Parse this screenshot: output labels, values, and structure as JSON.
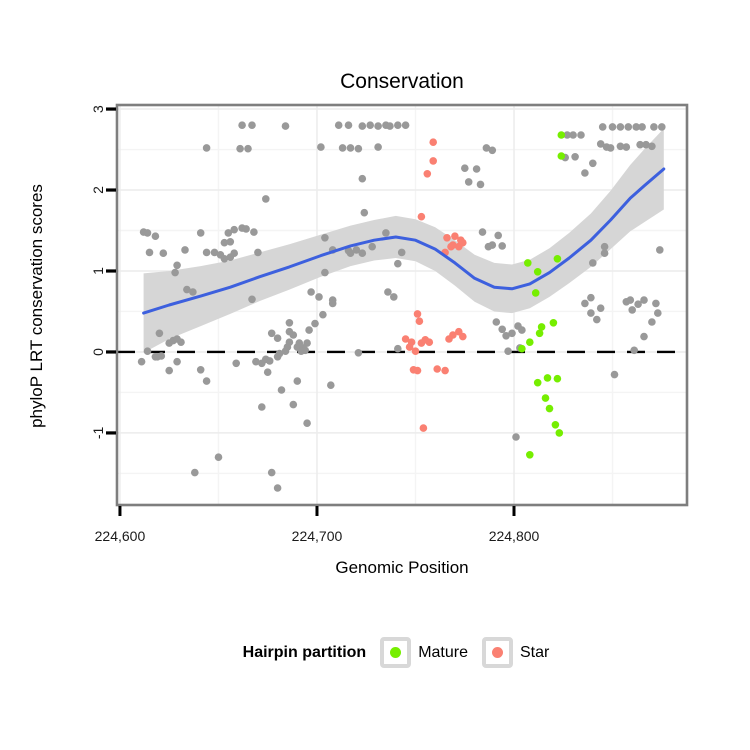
{
  "title": "Conservation",
  "axes": {
    "x": {
      "label": "Genomic Position",
      "domain": [
        224598.5,
        224887.8
      ],
      "ticks": [
        {
          "value": 224600,
          "label": "224,600"
        },
        {
          "value": 224700,
          "label": "224,700"
        },
        {
          "value": 224800,
          "label": "224,800"
        }
      ],
      "minor": [
        224650,
        224750,
        224850
      ]
    },
    "y": {
      "label": "phyloP LRT conservation scores",
      "domain": [
        -1.89,
        3.05
      ],
      "ticks": [
        {
          "value": 3,
          "label": "3"
        },
        {
          "value": 2,
          "label": "2"
        },
        {
          "value": 1,
          "label": "1"
        },
        {
          "value": 0,
          "label": "0"
        },
        {
          "value": -1,
          "label": "-1"
        }
      ],
      "minor": [
        2.5,
        1.5,
        0.5,
        -0.5,
        -1.5
      ]
    }
  },
  "reference_line": {
    "y": 0,
    "style": "dashed",
    "color": "#000000"
  },
  "legend": {
    "title": "Hairpin partition",
    "items": [
      {
        "label": "Mature",
        "color": "#76EE00"
      },
      {
        "label": "Star",
        "color": "#FA8072"
      }
    ]
  },
  "colors": {
    "other_points": "#999999",
    "mature_points": "#76EE00",
    "star_points": "#FA8072",
    "smooth_line": "#3D60DE",
    "confidence_band": "#D6D6D6",
    "panel_border": "#7E7E7E",
    "grid_major": "#ECECEC",
    "grid_minor": "#F4F4F4",
    "tick_text": "#1A1A1A"
  },
  "chart_data": {
    "type": "scatter",
    "xlabel": "Genomic Position",
    "ylabel": "phyloP LRT conservation scores",
    "title": "Conservation",
    "series": [
      {
        "name": "Other",
        "color": "#999999",
        "points": [
          [
            224662,
            2.8
          ],
          [
            224667,
            2.8
          ],
          [
            224684,
            2.79
          ],
          [
            224711,
            2.8
          ],
          [
            224716,
            2.8
          ],
          [
            224723,
            2.79
          ],
          [
            224727,
            2.8
          ],
          [
            224731,
            2.79
          ],
          [
            224735,
            2.8
          ],
          [
            224737,
            2.79
          ],
          [
            224741,
            2.8
          ],
          [
            224745,
            2.8
          ],
          [
            224845,
            2.78
          ],
          [
            224850,
            2.78
          ],
          [
            224854,
            2.78
          ],
          [
            224858,
            2.78
          ],
          [
            224862,
            2.78
          ],
          [
            224865,
            2.78
          ],
          [
            224871,
            2.78
          ],
          [
            224875,
            2.78
          ],
          [
            224644,
            2.52
          ],
          [
            224661,
            2.51
          ],
          [
            224665,
            2.51
          ],
          [
            224702,
            2.53
          ],
          [
            224713,
            2.52
          ],
          [
            224717,
            2.52
          ],
          [
            224721,
            2.51
          ],
          [
            224731,
            2.53
          ],
          [
            224786,
            2.52
          ],
          [
            224789,
            2.49
          ],
          [
            224844,
            2.57
          ],
          [
            224847,
            2.53
          ],
          [
            224849,
            2.52
          ],
          [
            224854,
            2.54
          ],
          [
            224857,
            2.53
          ],
          [
            224864,
            2.56
          ],
          [
            224867,
            2.56
          ],
          [
            224870,
            2.54
          ],
          [
            224827,
            2.68
          ],
          [
            224830,
            2.68
          ],
          [
            224834,
            2.68
          ],
          [
            224826,
            2.4
          ],
          [
            224831,
            2.41
          ],
          [
            224674,
            1.89
          ],
          [
            224723,
            2.14
          ],
          [
            224724,
            1.72
          ],
          [
            224775,
            2.27
          ],
          [
            224781,
            2.26
          ],
          [
            224777,
            2.1
          ],
          [
            224783,
            2.07
          ],
          [
            224840,
            2.33
          ],
          [
            224836,
            2.21
          ],
          [
            224784,
            1.48
          ],
          [
            224787,
            1.3
          ],
          [
            224792,
            1.44
          ],
          [
            224789,
            1.32
          ],
          [
            224794,
            1.31
          ],
          [
            224612,
            1.48
          ],
          [
            224614,
            1.47
          ],
          [
            224618,
            1.43
          ],
          [
            224615,
            1.23
          ],
          [
            224622,
            1.22
          ],
          [
            224633,
            1.26
          ],
          [
            224641,
            1.47
          ],
          [
            224629,
            1.07
          ],
          [
            224628,
            0.98
          ],
          [
            224644,
            1.23
          ],
          [
            224648,
            1.23
          ],
          [
            224651,
            1.2
          ],
          [
            224653,
            1.35
          ],
          [
            224656,
            1.36
          ],
          [
            224655,
            1.47
          ],
          [
            224658,
            1.51
          ],
          [
            224662,
            1.53
          ],
          [
            224664,
            1.52
          ],
          [
            224668,
            1.48
          ],
          [
            224653,
            1.15
          ],
          [
            224656,
            1.17
          ],
          [
            224658,
            1.22
          ],
          [
            224670,
            1.23
          ],
          [
            224634,
            0.77
          ],
          [
            224637,
            0.74
          ],
          [
            224667,
            0.65
          ],
          [
            224704,
            1.41
          ],
          [
            224708,
            1.26
          ],
          [
            224717,
            1.22
          ],
          [
            224728,
            1.3
          ],
          [
            224735,
            1.47
          ],
          [
            224743,
            1.23
          ],
          [
            224741,
            1.09
          ],
          [
            224704,
            0.98
          ],
          [
            224697,
            0.74
          ],
          [
            224701,
            0.68
          ],
          [
            224708,
            0.64
          ],
          [
            224736,
            0.74
          ],
          [
            224739,
            0.68
          ],
          [
            224716,
            1.25
          ],
          [
            224720,
            1.26
          ],
          [
            224723,
            1.22
          ],
          [
            224611,
            -0.12
          ],
          [
            224614,
            0.01
          ],
          [
            224618,
            -0.06
          ],
          [
            224619,
            -0.06
          ],
          [
            224621,
            -0.05
          ],
          [
            224625,
            0.11
          ],
          [
            224627,
            0.14
          ],
          [
            224629,
            0.16
          ],
          [
            224631,
            0.12
          ],
          [
            224620,
            0.23
          ],
          [
            224629,
            -0.12
          ],
          [
            224625,
            -0.23
          ],
          [
            224641,
            -0.22
          ],
          [
            224644,
            -0.36
          ],
          [
            224659,
            -0.14
          ],
          [
            224669,
            -0.12
          ],
          [
            224672,
            -0.14
          ],
          [
            224674,
            -0.09
          ],
          [
            224676,
            -0.11
          ],
          [
            224680,
            -0.06
          ],
          [
            224681,
            -0.02
          ],
          [
            224684,
            0.01
          ],
          [
            224685,
            0.06
          ],
          [
            224675,
            -0.25
          ],
          [
            224677,
            0.23
          ],
          [
            224680,
            0.17
          ],
          [
            224686,
            0.12
          ],
          [
            224688,
            0.21
          ],
          [
            224690,
            0.06
          ],
          [
            224695,
            0.11
          ],
          [
            224692,
            0.01
          ],
          [
            224686,
            0.36
          ],
          [
            224686,
            0.25
          ],
          [
            224690,
            -0.36
          ],
          [
            224682,
            -0.47
          ],
          [
            224688,
            -0.65
          ],
          [
            224672,
            -0.68
          ],
          [
            224695,
            -0.88
          ],
          [
            224708,
            0.6
          ],
          [
            224703,
            0.46
          ],
          [
            224699,
            0.35
          ],
          [
            224696,
            0.27
          ],
          [
            224691,
            0.11
          ],
          [
            224693,
            0.05
          ],
          [
            224694,
            0.02
          ],
          [
            224707,
            -0.41
          ],
          [
            224721,
            -0.01
          ],
          [
            224741,
            0.04
          ],
          [
            224638,
            -1.49
          ],
          [
            224650,
            -1.3
          ],
          [
            224677,
            -1.49
          ],
          [
            224680,
            -1.68
          ],
          [
            224801,
            -1.05
          ],
          [
            224791,
            0.37
          ],
          [
            224794,
            0.28
          ],
          [
            224796,
            0.2
          ],
          [
            224799,
            0.23
          ],
          [
            224802,
            0.32
          ],
          [
            224804,
            0.27
          ],
          [
            224797,
            0.01
          ],
          [
            224803,
            0.05
          ],
          [
            224836,
            0.6
          ],
          [
            224839,
            0.48
          ],
          [
            224842,
            0.4
          ],
          [
            224844,
            0.54
          ],
          [
            224857,
            0.62
          ],
          [
            224860,
            0.52
          ],
          [
            224863,
            0.59
          ],
          [
            224872,
            0.6
          ],
          [
            224873,
            0.48
          ],
          [
            224870,
            0.37
          ],
          [
            224866,
            0.19
          ],
          [
            224861,
            0.02
          ],
          [
            224851,
            -0.28
          ],
          [
            224840,
            1.1
          ],
          [
            224846,
            1.3
          ],
          [
            224846,
            1.22
          ],
          [
            224874,
            1.26
          ],
          [
            224839,
            0.67
          ],
          [
            224859,
            0.64
          ],
          [
            224866,
            0.64
          ]
        ]
      },
      {
        "name": "Mature",
        "color": "#76EE00",
        "points": [
          [
            224824,
            2.68
          ],
          [
            224824,
            2.42
          ],
          [
            224822,
            1.15
          ],
          [
            224807,
            1.1
          ],
          [
            224812,
            0.99
          ],
          [
            224811,
            0.73
          ],
          [
            224820,
            0.36
          ],
          [
            224814,
            0.31
          ],
          [
            224813,
            0.23
          ],
          [
            224808,
            0.12
          ],
          [
            224804,
            0.04
          ],
          [
            224812,
            -0.38
          ],
          [
            224817,
            -0.32
          ],
          [
            224822,
            -0.33
          ],
          [
            224816,
            -0.57
          ],
          [
            224818,
            -0.7
          ],
          [
            224821,
            -0.9
          ],
          [
            224823,
            -1.0
          ],
          [
            224808,
            -1.27
          ]
        ]
      },
      {
        "name": "Star",
        "color": "#FA8072",
        "points": [
          [
            224759,
            2.59
          ],
          [
            224759,
            2.36
          ],
          [
            224756,
            2.2
          ],
          [
            224753,
            1.67
          ],
          [
            224766,
            1.41
          ],
          [
            224770,
            1.43
          ],
          [
            224773,
            1.38
          ],
          [
            224769,
            1.32
          ],
          [
            224772,
            1.3
          ],
          [
            224774,
            1.35
          ],
          [
            224765,
            1.23
          ],
          [
            224768,
            1.3
          ],
          [
            224751,
            0.47
          ],
          [
            224752,
            0.38
          ],
          [
            224745,
            0.16
          ],
          [
            224748,
            0.12
          ],
          [
            224747,
            0.06
          ],
          [
            224753,
            0.11
          ],
          [
            224755,
            0.15
          ],
          [
            224757,
            0.12
          ],
          [
            224750,
            0.01
          ],
          [
            224749,
            -0.22
          ],
          [
            224751,
            -0.23
          ],
          [
            224761,
            -0.21
          ],
          [
            224765,
            -0.23
          ],
          [
            224767,
            0.16
          ],
          [
            224769,
            0.21
          ],
          [
            224772,
            0.25
          ],
          [
            224774,
            0.19
          ],
          [
            224754,
            -0.94
          ]
        ]
      }
    ],
    "smooth": {
      "color": "#3D60DE",
      "line": [
        [
          224612,
          0.48
        ],
        [
          224625,
          0.58
        ],
        [
          224641,
          0.69
        ],
        [
          224656,
          0.8
        ],
        [
          224671,
          0.93
        ],
        [
          224686,
          1.05
        ],
        [
          224702,
          1.19
        ],
        [
          224717,
          1.31
        ],
        [
          224729,
          1.38
        ],
        [
          224740,
          1.42
        ],
        [
          224750,
          1.38
        ],
        [
          224760,
          1.27
        ],
        [
          224770,
          1.1
        ],
        [
          224780,
          0.91
        ],
        [
          224790,
          0.8
        ],
        [
          224799,
          0.78
        ],
        [
          224808,
          0.84
        ],
        [
          224818,
          0.98
        ],
        [
          224828,
          1.16
        ],
        [
          224839,
          1.38
        ],
        [
          224849,
          1.63
        ],
        [
          224859,
          1.9
        ],
        [
          224866,
          2.05
        ],
        [
          224876,
          2.26
        ]
      ],
      "band": [
        [
          224612,
          -0.01,
          0.97
        ],
        [
          224625,
          0.16,
          1.0
        ],
        [
          224641,
          0.32,
          1.06
        ],
        [
          224656,
          0.47,
          1.13
        ],
        [
          224671,
          0.63,
          1.23
        ],
        [
          224686,
          0.77,
          1.33
        ],
        [
          224702,
          0.93,
          1.45
        ],
        [
          224717,
          1.06,
          1.56
        ],
        [
          224729,
          1.13,
          1.63
        ],
        [
          224740,
          1.16,
          1.68
        ],
        [
          224750,
          1.12,
          1.64
        ],
        [
          224760,
          1.0,
          1.54
        ],
        [
          224770,
          0.82,
          1.38
        ],
        [
          224780,
          0.62,
          1.2
        ],
        [
          224790,
          0.5,
          1.1
        ],
        [
          224799,
          0.48,
          1.08
        ],
        [
          224808,
          0.54,
          1.14
        ],
        [
          224818,
          0.68,
          1.28
        ],
        [
          224828,
          0.85,
          1.47
        ],
        [
          224839,
          1.05,
          1.71
        ],
        [
          224849,
          1.27,
          1.99
        ],
        [
          224859,
          1.49,
          2.31
        ],
        [
          224866,
          1.6,
          2.5
        ],
        [
          224876,
          1.76,
          2.76
        ]
      ]
    }
  }
}
